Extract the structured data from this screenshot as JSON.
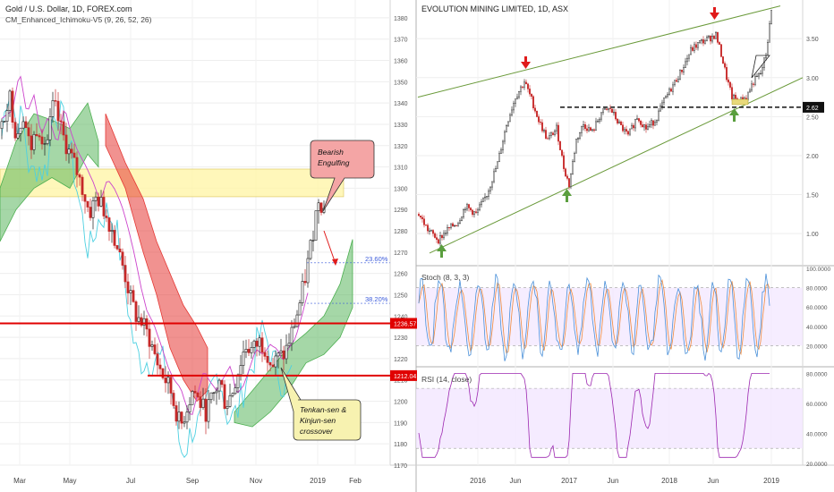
{
  "colors": {
    "bull": "#26a69a",
    "bear": "#c62828",
    "cloud_bull": "#4caf50",
    "cloud_bear": "#e53935",
    "tenkan": "#4dd0e1",
    "kijun": "#cc44cc",
    "chikou": "#2e7d32",
    "level": "#e00000",
    "stoch_k": "#4a90d9",
    "stoch_d": "#f08a3c",
    "rsi": "#9c27b0",
    "trend": "#6a9a3a",
    "up_arrow": "#5a9e3e",
    "down_arrow": "#e01b1b"
  },
  "left": {
    "title": "Gold / U.S. Dollar, 1D, FOREX.com",
    "indicator": "CM_Enhanced_Ichimoku-V5 (9, 26, 52, 26)",
    "x_ticks": [
      "Mar",
      "May",
      "Jul",
      "Sep",
      "Nov",
      "2019",
      "Feb"
    ],
    "y_range": [
      1170,
      1385
    ],
    "y_ticks": [
      1380,
      1370,
      1360,
      1350,
      1340,
      1330,
      1320,
      1310,
      1300,
      1290,
      1280,
      1270,
      1260,
      1250,
      1240,
      1230,
      1220,
      1210,
      1200,
      1190,
      1180,
      1170
    ],
    "levels": [
      {
        "label": "1236.57",
        "value": 1236.57
      },
      {
        "label": "1212.04",
        "value": 1212.04
      }
    ],
    "fib": [
      {
        "label": "23.60%",
        "value": 1265
      },
      {
        "label": "38.20%",
        "value": 1246
      }
    ],
    "zone": [
      1296,
      1309
    ],
    "annotations": {
      "bearish": [
        "Bearish",
        "Engulfing"
      ],
      "crossover": [
        "Tenkan-sen &",
        "Kinjun-sen",
        "crossover"
      ]
    }
  },
  "right": {
    "title": "EVOLUTION MINING LIMITED, 1D, ASX",
    "x_ticks": [
      "2016",
      "Jun",
      "2017",
      "Jun",
      "2018",
      "Jun",
      "2019"
    ],
    "y_range": [
      0.6,
      3.95
    ],
    "y_ticks": [
      "3.50",
      "3.00",
      "2.50",
      "2.00",
      "1.50",
      "1.00"
    ],
    "level": {
      "label": "2.62",
      "value": 2.62
    },
    "stoch": {
      "title": "Stoch (8, 3, 3)",
      "ticks": [
        "100.0000",
        "80.0000",
        "60.0000",
        "40.0000",
        "20.0000"
      ],
      "range": [
        0,
        100
      ],
      "bands": [
        20,
        80
      ]
    },
    "rsi": {
      "title": "RSI (14, close)",
      "ticks": [
        "80.0000",
        "60.0000",
        "40.0000",
        "20.0000"
      ],
      "range": [
        20,
        82
      ],
      "bands": [
        30,
        70
      ]
    }
  },
  "chart_data": [
    {
      "type": "candlestick",
      "title": "Gold / U.S. Dollar, 1D, FOREX.com",
      "x": [
        "Mar",
        "May",
        "Jul",
        "Sep",
        "Nov",
        "2019",
        "Feb"
      ],
      "close_path": [
        [
          "Mar",
          1325
        ],
        [
          "Apr",
          1340
        ],
        [
          "May",
          1300
        ],
        [
          "Jun",
          1270
        ],
        [
          "Jul",
          1240
        ],
        [
          "Aug",
          1205
        ],
        [
          "Sep",
          1195
        ],
        [
          "Oct",
          1225
        ],
        [
          "Nov",
          1222
        ],
        [
          "Dec",
          1250
        ],
        [
          "2019",
          1295
        ]
      ],
      "ylim": [
        1170,
        1385
      ]
    },
    {
      "type": "candlestick",
      "title": "EVOLUTION MINING LIMITED, 1D, ASX",
      "x": [
        "2016",
        "Jun",
        "2017",
        "Jun",
        "2018",
        "Jun",
        "2019"
      ],
      "close_path": [
        [
          "2016",
          1.1
        ],
        [
          "Jun",
          2.95
        ],
        [
          "2017",
          1.6
        ],
        [
          "Jun",
          2.35
        ],
        [
          "2018",
          2.65
        ],
        [
          "Jun",
          3.55
        ],
        [
          "2019",
          3.85
        ]
      ],
      "ylim": [
        0.6,
        3.95
      ]
    }
  ]
}
